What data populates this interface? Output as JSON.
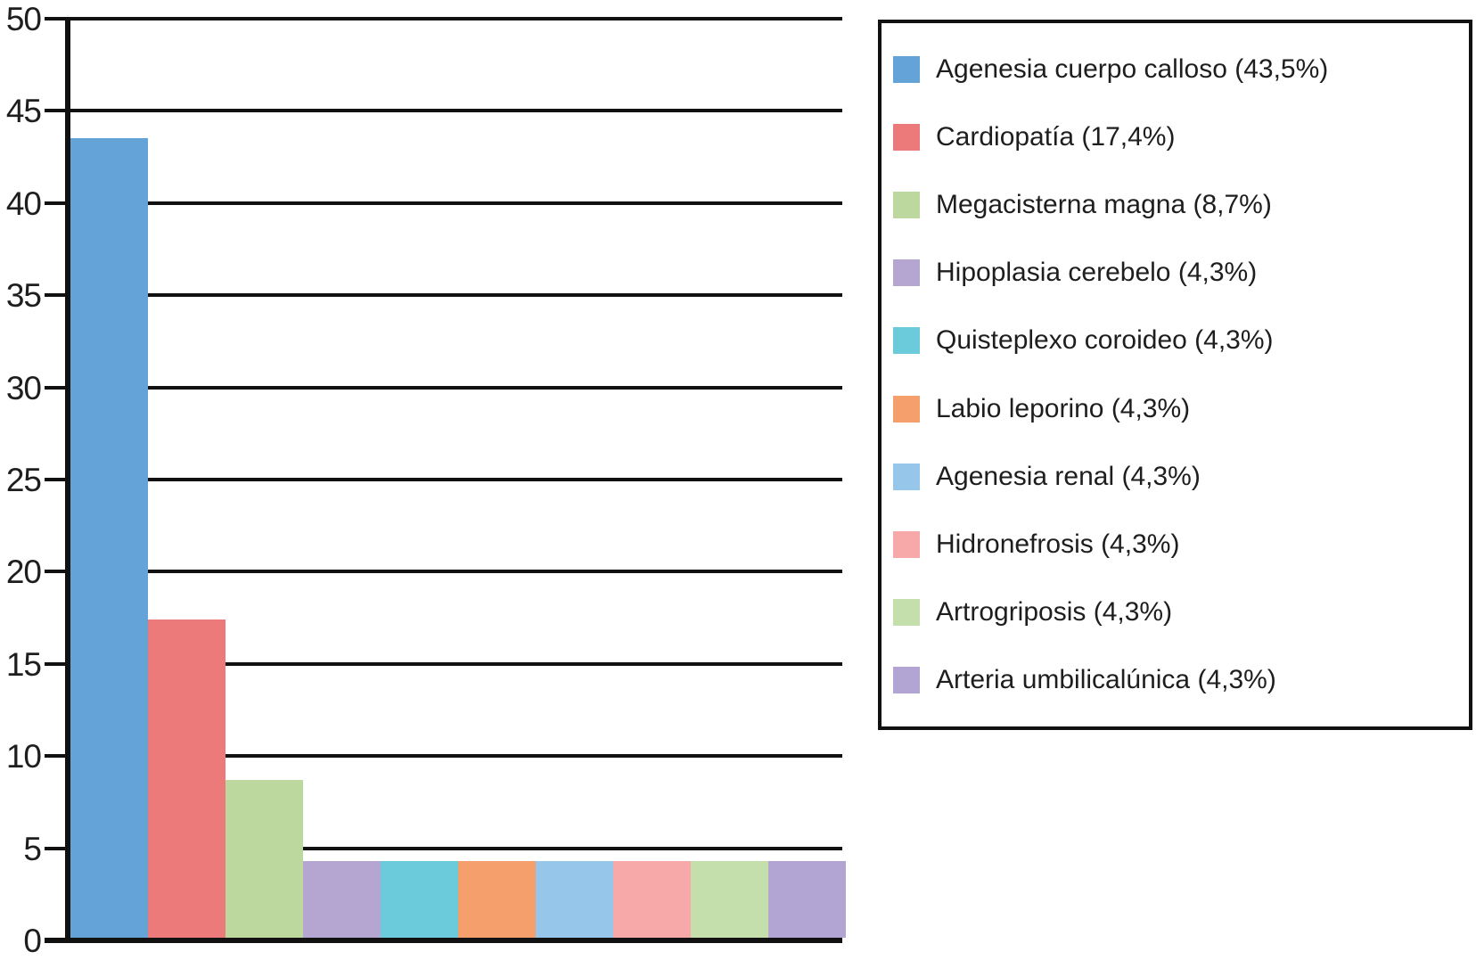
{
  "chart_data": {
    "type": "bar",
    "title": "",
    "xlabel": "",
    "ylabel": "",
    "categories": [
      "Agenesia cuerpo calloso",
      "Cardiopatía",
      "Megacisterna magna",
      "Hipoplasia cerebelo",
      "Quisteplexo coroideo",
      "Labio leporino",
      "Agenesia renal",
      "Hidronefrosis",
      "Artrogriposis",
      "Arteria umbilicalúnica"
    ],
    "values": [
      43.5,
      17.4,
      8.7,
      4.3,
      4.3,
      4.3,
      4.3,
      4.3,
      4.3,
      4.3
    ],
    "bar_colors": [
      "#64A3D8",
      "#EC7A7A",
      "#BCD89E",
      "#B4A5D1",
      "#6BCBDB",
      "#F5A06C",
      "#96C6E9",
      "#F7A8A8",
      "#C4DFAB",
      "#B3A5D3"
    ],
    "legend_labels": [
      "Agenesia cuerpo calloso (43,5%)",
      "Cardiopatía (17,4%)",
      "Megacisterna magna (8,7%)",
      "Hipoplasia cerebelo (4,3%)",
      "Quisteplexo coroideo (4,3%)",
      "Labio leporino (4,3%)",
      "Agenesia renal (4,3%)",
      "Hidronefrosis (4,3%)",
      "Artrogriposis (4,3%)",
      "Arteria umbilicalúnica (4,3%)"
    ],
    "ylim": [
      0,
      50
    ],
    "ytick_step": 5,
    "ytick_labels": [
      "0",
      "5",
      "10",
      "15",
      "20",
      "25",
      "30",
      "35",
      "40",
      "45",
      "50"
    ],
    "grid": "horizontal",
    "legend_position": "right",
    "colors": {
      "axis": "#111111",
      "text": "#1E1E1E",
      "background": "#FFFFFF",
      "legend_border": "#111111"
    }
  }
}
